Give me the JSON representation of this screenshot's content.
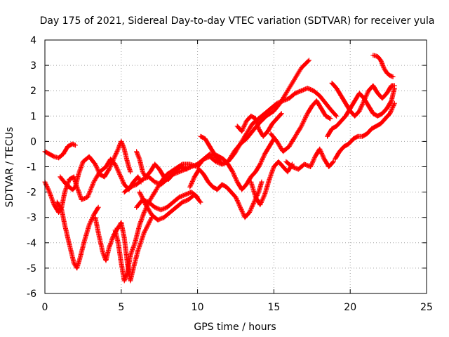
{
  "chart_data": {
    "type": "scatter",
    "title": "Day 175 of 2021, Sidereal Day-to-day VTEC variation (SDTVAR) for receiver yula",
    "xlabel": "GPS time / hours",
    "ylabel": "SDTVAR / TECUs",
    "xlim": [
      0,
      25
    ],
    "ylim": [
      -6,
      4
    ],
    "xticks": [
      "0",
      "5",
      "10",
      "15",
      "20",
      "25"
    ],
    "yticks": [
      "-6",
      "-5",
      "-4",
      "-3",
      "-2",
      "-1",
      "0",
      "1",
      "2",
      "3",
      "4"
    ],
    "grid": true,
    "marker": "+",
    "series": [
      {
        "color": "#ff0000",
        "x": [
          0.0,
          0.3,
          0.6,
          0.9,
          1.2,
          1.5,
          1.8,
          2.0
        ],
        "y": [
          -0.4,
          -0.5,
          -0.6,
          -0.65,
          -0.5,
          -0.2,
          -0.1,
          -0.15
        ]
      },
      {
        "color": "#ff0000",
        "x": [
          0.0,
          0.3,
          0.6,
          0.9,
          1.1,
          1.3,
          1.6,
          1.9,
          2.1,
          2.4,
          2.8,
          3.2,
          3.6,
          4.0,
          4.3,
          4.6,
          4.9,
          5.2,
          5.5,
          5.8,
          6.1,
          6.3
        ],
        "y": [
          -1.6,
          -2.0,
          -2.5,
          -2.8,
          -2.6,
          -2.0,
          -1.5,
          -1.4,
          -1.8,
          -2.3,
          -2.2,
          -1.6,
          -1.2,
          -1.0,
          -0.7,
          -0.9,
          -1.3,
          -1.7,
          -1.9,
          -1.6,
          -1.4,
          -1.6
        ]
      },
      {
        "color": "#ff0000",
        "x": [
          1.0,
          1.4,
          1.8,
          2.0,
          2.2,
          2.5,
          2.9,
          3.3,
          3.6,
          3.9,
          4.2,
          4.5,
          4.8,
          5.0,
          5.2,
          5.4,
          5.6
        ],
        "y": [
          -1.4,
          -1.7,
          -1.9,
          -1.8,
          -1.3,
          -0.8,
          -0.6,
          -0.9,
          -1.3,
          -1.4,
          -1.1,
          -0.7,
          -0.3,
          0.0,
          -0.3,
          -0.8,
          -1.2
        ]
      },
      {
        "color": "#ff0000",
        "x": [
          0.8,
          1.1,
          1.3,
          1.5,
          1.7,
          1.9,
          2.1,
          2.3,
          2.6,
          2.9,
          3.2,
          3.5
        ],
        "y": [
          -2.4,
          -2.7,
          -3.3,
          -3.8,
          -4.3,
          -4.8,
          -5.0,
          -4.6,
          -3.9,
          -3.3,
          -2.9,
          -2.6
        ]
      },
      {
        "color": "#ff0000",
        "x": [
          3.3,
          3.5,
          3.8,
          4.0,
          4.2,
          4.5,
          4.8,
          5.0,
          5.2,
          5.4,
          5.6,
          5.8,
          6.1,
          6.5,
          7.0
        ],
        "y": [
          -3.0,
          -3.6,
          -4.4,
          -4.7,
          -4.2,
          -3.7,
          -3.4,
          -3.2,
          -3.8,
          -4.8,
          -5.5,
          -5.0,
          -4.3,
          -3.6,
          -3.0
        ]
      },
      {
        "color": "#ff0000",
        "x": [
          4.6,
          4.8,
          5.0,
          5.2,
          5.4,
          5.6,
          5.9,
          6.2,
          6.5,
          6.8,
          7.2,
          7.6,
          8.0,
          8.5,
          9.0,
          9.5,
          10.0,
          10.4,
          10.8,
          11.2,
          11.6,
          12.0,
          12.4,
          12.8,
          13.2,
          13.6,
          14.0,
          14.5,
          15.0,
          15.4,
          15.8,
          16.3,
          16.8,
          17.3
        ],
        "y": [
          -3.5,
          -4.0,
          -4.8,
          -5.5,
          -5.2,
          -4.5,
          -4.0,
          -3.3,
          -2.8,
          -2.4,
          -2.0,
          -1.6,
          -1.3,
          -1.1,
          -0.9,
          -0.9,
          -1.0,
          -0.7,
          -0.5,
          -0.6,
          -0.9,
          -0.8,
          -0.4,
          -0.1,
          0.1,
          0.4,
          0.7,
          1.0,
          1.2,
          1.5,
          1.9,
          2.4,
          2.9,
          3.2
        ]
      },
      {
        "color": "#ff0000",
        "x": [
          5.2,
          5.6,
          6.0,
          6.4,
          6.8,
          7.2,
          7.6,
          8.0,
          8.4,
          8.8,
          9.2,
          9.6,
          10.0,
          10.4,
          10.8,
          11.2,
          11.6,
          12.0,
          12.4,
          12.8,
          13.2,
          13.6,
          14.0,
          14.4,
          14.8,
          15.2,
          15.6,
          16.0,
          16.4,
          16.8,
          17.2,
          17.6,
          18.0,
          18.4,
          18.8,
          19.1
        ],
        "y": [
          -2.0,
          -1.8,
          -1.7,
          -1.5,
          -1.4,
          -1.6,
          -1.7,
          -1.5,
          -1.3,
          -1.2,
          -1.1,
          -1.0,
          -0.9,
          -0.7,
          -0.6,
          -0.8,
          -0.9,
          -0.8,
          -0.5,
          -0.1,
          0.3,
          0.7,
          0.9,
          1.1,
          1.3,
          1.5,
          1.6,
          1.7,
          1.9,
          2.0,
          2.1,
          2.0,
          1.8,
          1.5,
          1.2,
          1.0
        ]
      },
      {
        "color": "#ff0000",
        "x": [
          6.2,
          6.6,
          7.0,
          7.4,
          7.8,
          8.2,
          8.6,
          9.0,
          9.4,
          9.8,
          10.2
        ],
        "y": [
          -2.0,
          -2.5,
          -2.9,
          -3.1,
          -3.0,
          -2.8,
          -2.6,
          -2.4,
          -2.3,
          -2.1,
          -2.4
        ]
      },
      {
        "color": "#ff0000",
        "x": [
          6.0,
          6.4,
          6.8,
          7.2,
          7.6,
          8.0,
          8.4,
          8.8,
          9.2,
          9.6,
          10.0
        ],
        "y": [
          -2.6,
          -2.3,
          -2.4,
          -2.6,
          -2.7,
          -2.6,
          -2.4,
          -2.2,
          -2.1,
          -2.0,
          -2.2
        ]
      },
      {
        "color": "#ff0000",
        "x": [
          6.0,
          6.2,
          6.4,
          6.6,
          6.9,
          7.2,
          7.5,
          7.8,
          8.1,
          8.5,
          8.9,
          9.3
        ],
        "y": [
          -0.4,
          -0.7,
          -1.2,
          -1.4,
          -1.2,
          -0.9,
          -1.1,
          -1.4,
          -1.5,
          -1.2,
          -1.0,
          -1.1
        ]
      },
      {
        "color": "#ff0000",
        "x": [
          9.5,
          9.8,
          10.1,
          10.4,
          10.7,
          11.0,
          11.3,
          11.6,
          11.9,
          12.2,
          12.5,
          12.8,
          13.1,
          13.4,
          13.7,
          14.0,
          14.2
        ],
        "y": [
          -1.8,
          -1.4,
          -1.1,
          -1.3,
          -1.6,
          -1.8,
          -1.9,
          -1.7,
          -1.8,
          -2.0,
          -2.2,
          -2.6,
          -3.0,
          -2.8,
          -2.4,
          -2.0,
          -1.6
        ]
      },
      {
        "color": "#ff0000",
        "x": [
          10.2,
          10.5,
          10.8,
          11.1,
          11.4,
          11.7,
          12.0,
          12.3,
          12.6,
          12.9,
          13.2,
          13.5,
          13.8,
          14.1,
          14.4,
          14.7,
          15.0
        ],
        "y": [
          0.2,
          0.1,
          -0.2,
          -0.5,
          -0.6,
          -0.7,
          -0.9,
          -1.2,
          -1.6,
          -1.9,
          -1.7,
          -1.4,
          -1.2,
          -0.9,
          -0.5,
          -0.2,
          0.1
        ]
      },
      {
        "color": "#ff0000",
        "x": [
          12.6,
          12.9,
          13.2,
          13.5,
          13.8,
          14.0,
          14.3,
          14.6,
          14.9,
          15.2,
          15.5
        ],
        "y": [
          0.6,
          0.4,
          0.8,
          1.0,
          0.9,
          0.5,
          0.2,
          0.4,
          0.7,
          0.9,
          1.1
        ]
      },
      {
        "color": "#ff0000",
        "x": [
          13.5,
          13.8,
          14.1,
          14.4,
          14.7,
          15.0,
          15.3,
          15.6,
          15.9,
          16.2
        ],
        "y": [
          -1.6,
          -2.2,
          -2.5,
          -2.1,
          -1.5,
          -1.0,
          -0.8,
          -1.0,
          -1.2,
          -0.9
        ]
      },
      {
        "color": "#ff0000",
        "x": [
          14.8,
          15.2,
          15.6,
          16.0,
          16.4,
          16.8,
          17.2,
          17.5,
          17.8,
          18.1,
          18.4,
          18.7
        ],
        "y": [
          0.3,
          0.0,
          -0.4,
          -0.2,
          0.2,
          0.6,
          1.1,
          1.4,
          1.6,
          1.3,
          1.0,
          0.9
        ]
      },
      {
        "color": "#ff0000",
        "x": [
          15.8,
          16.2,
          16.6,
          17.0,
          17.4,
          17.7,
          18.0,
          18.3,
          18.6,
          18.9
        ],
        "y": [
          -0.8,
          -1.0,
          -1.1,
          -0.9,
          -1.0,
          -0.6,
          -0.3,
          -0.7,
          -1.0,
          -0.8
        ]
      },
      {
        "color": "#ff0000",
        "x": [
          19.0,
          19.3,
          19.6,
          19.9,
          20.2,
          20.5,
          20.8,
          21.1,
          21.4,
          21.7,
          22.0,
          22.3,
          22.6,
          22.9
        ],
        "y": [
          -0.7,
          -0.4,
          -0.2,
          -0.1,
          0.1,
          0.2,
          0.2,
          0.3,
          0.5,
          0.6,
          0.7,
          0.9,
          1.1,
          1.5
        ]
      },
      {
        "color": "#ff0000",
        "x": [
          18.5,
          18.8,
          19.1,
          19.4,
          19.7,
          20.0,
          20.3,
          20.6,
          20.9,
          21.2,
          21.5,
          21.8,
          22.1,
          22.4,
          22.7,
          22.9
        ],
        "y": [
          0.2,
          0.5,
          0.6,
          0.8,
          1.0,
          1.3,
          1.6,
          1.9,
          1.7,
          1.4,
          1.1,
          1.0,
          1.1,
          1.3,
          1.6,
          2.1
        ]
      },
      {
        "color": "#ff0000",
        "x": [
          18.8,
          19.1,
          19.4,
          19.7,
          20.0,
          20.3,
          20.6,
          20.9,
          21.2,
          21.5,
          21.8,
          22.1,
          22.4,
          22.7,
          22.9
        ],
        "y": [
          2.3,
          2.1,
          1.8,
          1.5,
          1.2,
          1.0,
          1.2,
          1.6,
          2.0,
          2.2,
          1.9,
          1.7,
          1.9,
          2.2,
          2.2
        ]
      },
      {
        "color": "#ff0000",
        "x": [
          21.5,
          21.8,
          22.0,
          22.2,
          22.4,
          22.6,
          22.8
        ],
        "y": [
          3.4,
          3.35,
          3.2,
          2.9,
          2.7,
          2.6,
          2.55
        ]
      }
    ]
  }
}
